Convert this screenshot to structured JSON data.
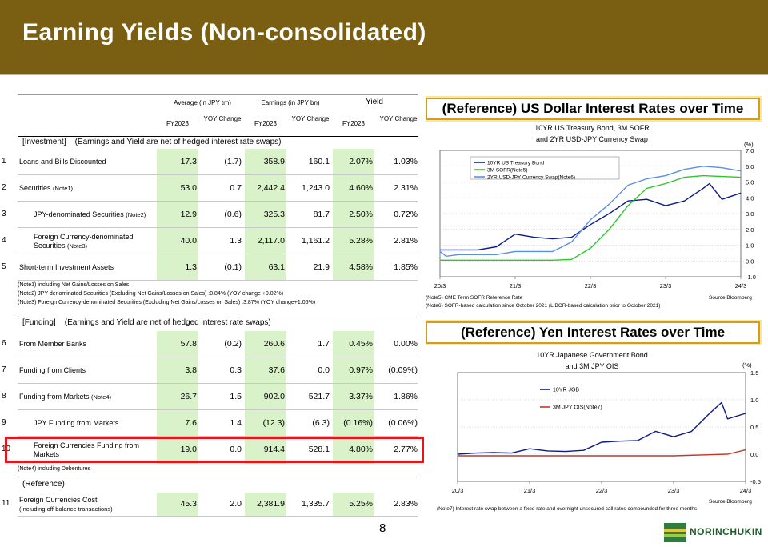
{
  "title": "Earning Yields (Non-consolidated)",
  "page_number": "8",
  "logo_text": "NORINCHUKIN",
  "table": {
    "group_headers": {
      "average": "Average (in JPY trn)",
      "earnings": "Earnings (in JPY bn)",
      "yield": "Yield"
    },
    "col_headers": [
      "FY2023",
      "YOY Change",
      "FY2023",
      "YOY Change",
      "FY2023",
      "YOY Change"
    ],
    "investment_header": "[Investment]    (Earnings and Yield are net of hedged interest rate swaps)",
    "funding_header": "[Funding]    (Earnings and Yield are net of hedged interest rate swaps)",
    "reference_header": "(Reference)",
    "rows": [
      {
        "num": "1",
        "label": "Loans and Bills Discounted",
        "note": "",
        "values": [
          "17.3",
          "(1.7)",
          "358.9",
          "160.1",
          "2.07%",
          "1.03%"
        ]
      },
      {
        "num": "2",
        "label": "Securities",
        "note": "(Note1)",
        "values": [
          "53.0",
          "0.7",
          "2,442.4",
          "1,243.0",
          "4.60%",
          "2.31%"
        ]
      },
      {
        "num": "3",
        "label": "JPY-denominated Securities",
        "note": "(Note2)",
        "values": [
          "12.9",
          "(0.6)",
          "325.3",
          "81.7",
          "2.50%",
          "0.72%"
        ]
      },
      {
        "num": "4",
        "label": "Foreign Currency-denominated Securities",
        "note": "(Note3)",
        "values": [
          "40.0",
          "1.3",
          "2,117.0",
          "1,161.2",
          "5.28%",
          "2.81%"
        ]
      },
      {
        "num": "5",
        "label": "Short-term Investment Assets",
        "note": "",
        "values": [
          "1.3",
          "(0.1)",
          "63.1",
          "21.9",
          "4.58%",
          "1.85%"
        ]
      },
      {
        "num": "6",
        "label": "From Member Banks",
        "note": "",
        "values": [
          "57.8",
          "(0.2)",
          "260.6",
          "1.7",
          "0.45%",
          "0.00%"
        ]
      },
      {
        "num": "7",
        "label": "Funding from Clients",
        "note": "",
        "values": [
          "3.8",
          "0.3",
          "37.6",
          "0.0",
          "0.97%",
          "(0.09%)"
        ]
      },
      {
        "num": "8",
        "label": "Funding from Markets",
        "note": "(Note4)",
        "values": [
          "26.7",
          "1.5",
          "902.0",
          "521.7",
          "3.37%",
          "1.86%"
        ]
      },
      {
        "num": "9",
        "label": "JPY Funding from Markets",
        "note": "",
        "values": [
          "7.6",
          "1.4",
          "(12.3)",
          "(6.3)",
          "(0.16%)",
          "(0.06%)"
        ]
      },
      {
        "num": "10",
        "label": "Foreign Currencies Funding from Markets",
        "note": "",
        "values": [
          "19.0",
          "0.0",
          "914.4",
          "528.1",
          "4.80%",
          "2.77%"
        ]
      },
      {
        "num": "11",
        "label": "Foreign Currencies Cost",
        "note": "(Including off-balance transactions)",
        "values": [
          "45.3",
          "2.0",
          "2,381.9",
          "1,335.7",
          "5.25%",
          "2.83%"
        ]
      }
    ],
    "notes_investment": [
      "(Note1) including Net Gains/Losses on Sales",
      "(Note2) JPY-denominated Securities (Excluding Net Gains/Losses on Sales) :0.84%  (YOY change +0.02%)",
      "(Note3) Foreign Currency-denominated Securities (Excluding Net Gains/Losses on Sales) :3.87%  (YOY change+1.06%)"
    ],
    "note_funding": "(Note4) including Debentures"
  },
  "usd_panel": {
    "title": "(Reference) US Dollar Interest Rates over Time",
    "subtitle_1": "10YR US Treasury Bond,  3M SOFR",
    "subtitle_2": "and 2YR USD-JPY Currency Swap",
    "unit": "(%)",
    "source": "Source:Bloomberg",
    "note5": "(Note5) CME Term SOFR Reference Rate",
    "note6": "(Note6) SOFR-based calculation since October 2021 (LIBOR-based calculation prior to October 2021)"
  },
  "jpy_panel": {
    "title": "(Reference) Yen Interest Rates over Time",
    "subtitle_1": "10YR Japanese Government Bond",
    "subtitle_2": "and 3M JPY OIS",
    "unit": "(%)",
    "source": "Source:Bloomberg",
    "note7": "(Note7) Interest rate swap between a fixed rate and overnight unsecured call rates compounded for three months"
  },
  "chart_data": [
    {
      "type": "line",
      "x_ticks": [
        "20/3",
        "21/3",
        "22/3",
        "23/3",
        "24/3"
      ],
      "y_ticks": [
        "7.0",
        "6.0",
        "5.0",
        "4.0",
        "3.0",
        "2.0",
        "1.0",
        "0.0",
        "-1.0"
      ],
      "ylim": [
        -1.0,
        7.0
      ],
      "series": [
        {
          "name": "10YR US Treasury Bond",
          "color": "#0a1a8c",
          "x": [
            "20/3",
            "20/6",
            "20/9",
            "20/12",
            "21/3",
            "21/6",
            "21/9",
            "21/12",
            "22/3",
            "22/6",
            "22/9",
            "22/12",
            "23/3",
            "23/6",
            "23/9",
            "23/10",
            "23/12",
            "24/3"
          ],
          "values": [
            0.7,
            0.7,
            0.7,
            0.9,
            1.7,
            1.5,
            1.4,
            1.5,
            2.3,
            3.0,
            3.8,
            3.9,
            3.5,
            3.8,
            4.6,
            4.9,
            3.9,
            4.3
          ]
        },
        {
          "name": "3M SOFR(Note5)",
          "color": "#2ec62e",
          "x": [
            "20/3",
            "20/6",
            "20/9",
            "20/12",
            "21/3",
            "21/6",
            "21/9",
            "21/12",
            "22/3",
            "22/6",
            "22/9",
            "22/12",
            "23/3",
            "23/6",
            "23/9",
            "23/12",
            "24/3"
          ],
          "values": [
            0.05,
            0.05,
            0.05,
            0.05,
            0.05,
            0.05,
            0.05,
            0.1,
            0.8,
            2.0,
            3.5,
            4.6,
            4.9,
            5.3,
            5.4,
            5.35,
            5.3
          ]
        },
        {
          "name": "2YR USD-JPY Currency Swap(Note6)",
          "color": "#5b8fe0",
          "x": [
            "20/3",
            "20/4",
            "20/6",
            "20/9",
            "20/12",
            "21/3",
            "21/6",
            "21/9",
            "21/12",
            "22/3",
            "22/6",
            "22/9",
            "22/12",
            "23/3",
            "23/6",
            "23/9",
            "23/12",
            "24/3"
          ],
          "values": [
            0.6,
            0.3,
            0.4,
            0.4,
            0.4,
            0.6,
            0.6,
            0.6,
            1.2,
            2.6,
            3.6,
            4.8,
            5.2,
            5.4,
            5.8,
            6.0,
            5.9,
            5.7
          ]
        }
      ]
    },
    {
      "type": "line",
      "x_ticks": [
        "20/3",
        "21/3",
        "22/3",
        "23/3",
        "24/3"
      ],
      "y_ticks": [
        "1.5",
        "1.0",
        "0.5",
        "0.0",
        "-0.5"
      ],
      "ylim": [
        -0.5,
        1.5
      ],
      "series": [
        {
          "name": "10YR JGB",
          "color": "#0a1a8c",
          "x": [
            "20/3",
            "20/6",
            "20/9",
            "20/12",
            "21/3",
            "21/6",
            "21/9",
            "21/12",
            "22/3",
            "22/6",
            "22/9",
            "22/12",
            "23/3",
            "23/6",
            "23/9",
            "23/11",
            "23/12",
            "24/3"
          ],
          "values": [
            0.0,
            0.02,
            0.03,
            0.02,
            0.1,
            0.06,
            0.05,
            0.07,
            0.22,
            0.24,
            0.25,
            0.42,
            0.32,
            0.42,
            0.75,
            0.95,
            0.65,
            0.75
          ]
        },
        {
          "name": "3M JPY OIS(Note7)",
          "color": "#c0392b",
          "x": [
            "20/3",
            "21/3",
            "22/3",
            "23/3",
            "23/12",
            "24/3"
          ],
          "values": [
            -0.03,
            -0.03,
            -0.03,
            -0.03,
            0.0,
            0.08
          ]
        }
      ]
    }
  ]
}
